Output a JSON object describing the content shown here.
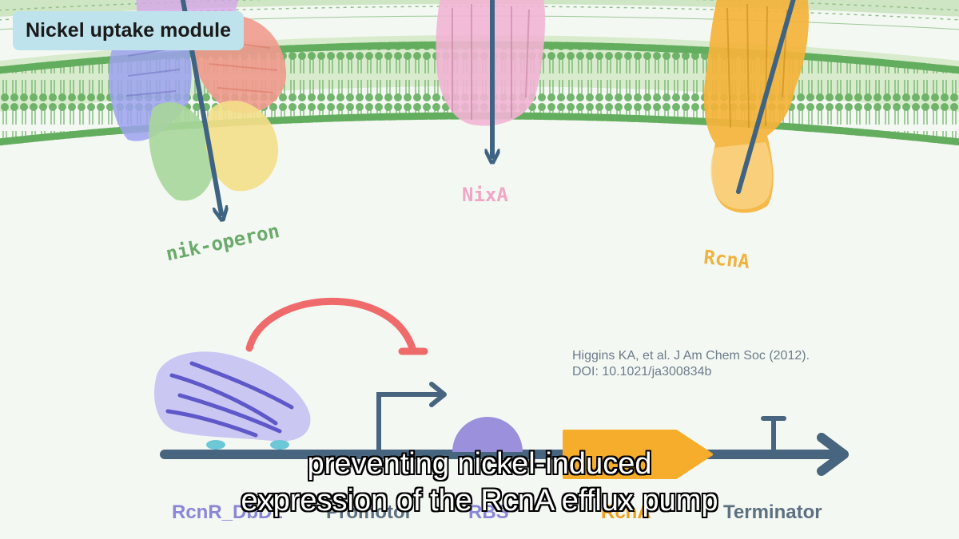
{
  "module_badge": "Nickel uptake module",
  "proteins": {
    "nik": "nik-operon",
    "nixa": "NixA",
    "rcna": "RcnA"
  },
  "citation": {
    "line1": "Higgins KA, et al. J Am Chem Soc (2012).",
    "line2": "DOI: 10.1021/ja300834b"
  },
  "gene_labels": {
    "regulator": "RcnR_DbD1",
    "promoter": "Promotor",
    "rbs": "RBS",
    "gene": "RcnA",
    "terminator": "Terminator"
  },
  "subtitles": {
    "line1": "preventing nickel-induced",
    "line2": "expression of the RcnA efflux pump"
  },
  "colors": {
    "membrane": "#63ad5e",
    "membrane_fill": "#d8ebcc",
    "arrow": "#3f6382",
    "repression": "#ef6b6b",
    "regulator_protein": "#7b78d8",
    "rbs": "#9a90dc",
    "gene": "#f6ad2c",
    "dna": "#47657f"
  }
}
